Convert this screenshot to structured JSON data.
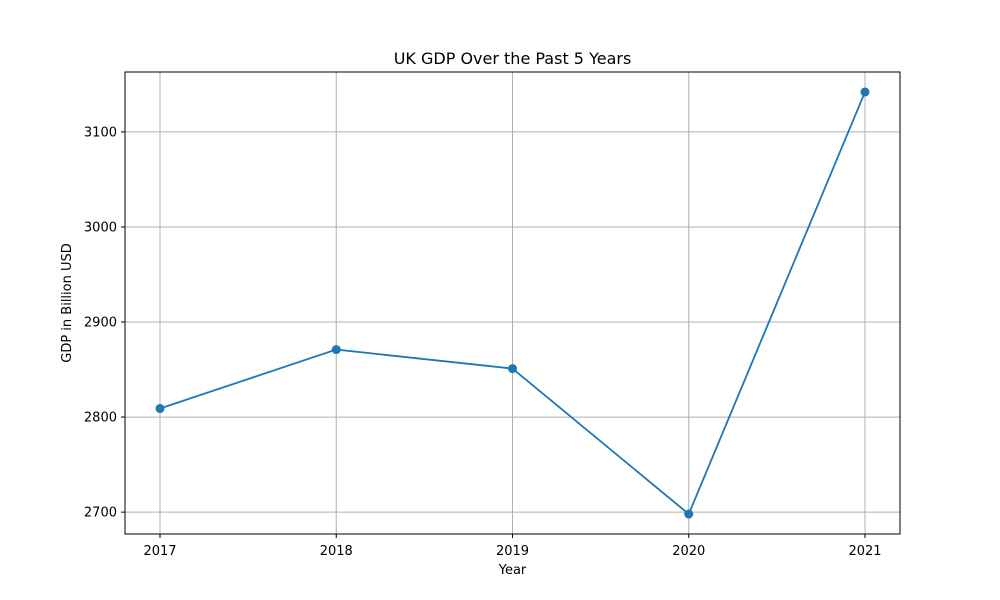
{
  "chart_data": {
    "type": "line",
    "title": "UK GDP Over the Past 5 Years",
    "xlabel": "Year",
    "ylabel": "GDP in Billion USD",
    "x": [
      "2017",
      "2018",
      "2019",
      "2020",
      "2021"
    ],
    "series": [
      {
        "values": [
          2809,
          2871,
          2851,
          2698,
          3142
        ]
      }
    ],
    "ylim": [
      2677,
      3163
    ],
    "yticks": [
      2700,
      2800,
      2900,
      3000,
      3100
    ],
    "grid": true,
    "marker": "circle",
    "colors": {
      "line": "#1f77b4",
      "grid": "#b0b0b0",
      "axis": "#000000"
    }
  }
}
